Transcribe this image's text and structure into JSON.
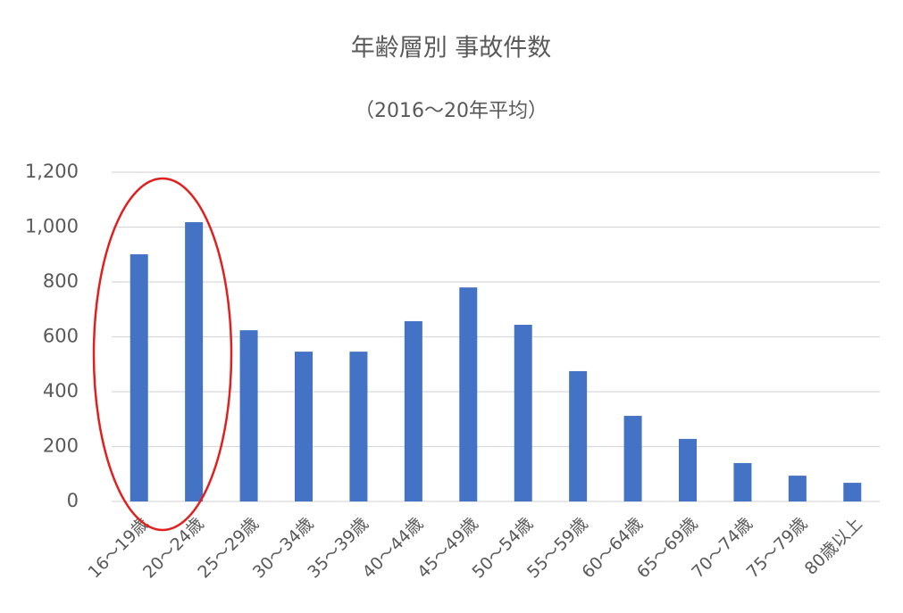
{
  "chart_data": {
    "type": "bar",
    "title": "年齢層別 事故件数",
    "subtitle": "（2016～20年平均）",
    "categories": [
      "16～19歳",
      "20～24歳",
      "25～29歳",
      "30～34歳",
      "35～39歳",
      "40～44歳",
      "45～49歳",
      "50～54歳",
      "55～59歳",
      "60～64歳",
      "65～69歳",
      "70～74歳",
      "75～79歳",
      "80歳以上"
    ],
    "values": [
      901,
      1018,
      624,
      546,
      546,
      657,
      780,
      644,
      475,
      312,
      228,
      140,
      94,
      68
    ],
    "color": "#4472c4",
    "ylim": [
      0,
      1200
    ],
    "yticks": [
      0,
      200,
      400,
      600,
      800,
      {
        "value": 1000,
        "label": "1,000"
      },
      {
        "value": 1200,
        "label": "1,200"
      }
    ],
    "grid": true
  }
}
